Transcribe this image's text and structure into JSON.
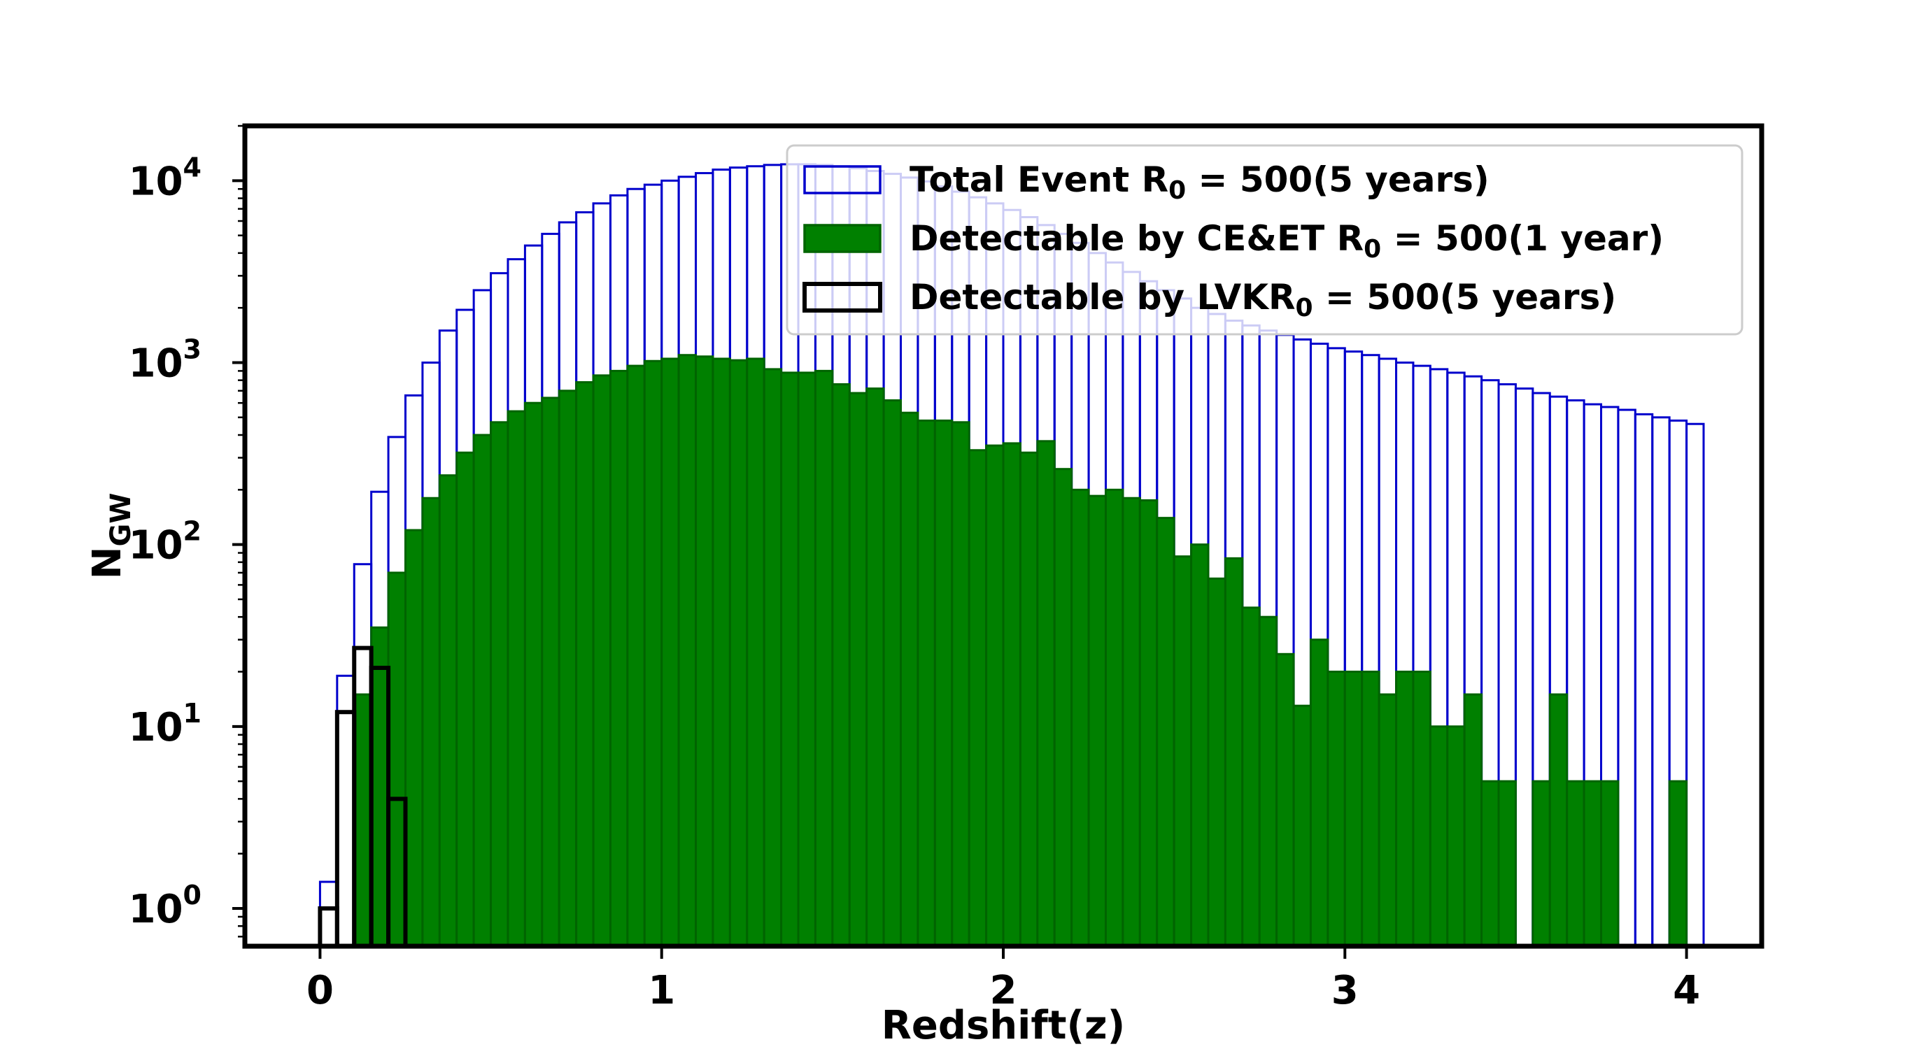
{
  "chart_data": {
    "type": "bar",
    "subtype": "step histogram",
    "yscale": "log",
    "xlabel": "Redshift(z)",
    "ylabel_main": "N",
    "ylabel_sub": "GW",
    "xlim": [
      -0.22,
      4.22
    ],
    "ylim": [
      0.62,
      20000
    ],
    "bin_width": 0.05,
    "bin_start": 0.0,
    "x_ticks": [
      {
        "value": 0,
        "label": "0"
      },
      {
        "value": 1,
        "label": "1"
      },
      {
        "value": 2,
        "label": "2"
      },
      {
        "value": 3,
        "label": "3"
      },
      {
        "value": 4,
        "label": "4"
      }
    ],
    "y_ticks": [
      {
        "value": 1,
        "base": "10",
        "exp": "0"
      },
      {
        "value": 10,
        "base": "10",
        "exp": "1"
      },
      {
        "value": 100,
        "base": "10",
        "exp": "2"
      },
      {
        "value": 1000,
        "base": "10",
        "exp": "3"
      },
      {
        "value": 10000,
        "base": "10",
        "exp": "4"
      }
    ],
    "series": [
      {
        "name": "total",
        "color": "#0000cc",
        "filled": false,
        "values": [
          1.4,
          19,
          78,
          195,
          390,
          660,
          1000,
          1500,
          1950,
          2500,
          3100,
          3700,
          4400,
          5100,
          5900,
          6700,
          7500,
          8300,
          9000,
          9500,
          10000,
          10500,
          11000,
          11500,
          11800,
          12000,
          12200,
          12300,
          12300,
          12200,
          12000,
          11700,
          11300,
          10900,
          10400,
          9900,
          9300,
          8700,
          8100,
          7500,
          6900,
          6300,
          5700,
          5100,
          4550,
          4000,
          3550,
          3150,
          2800,
          2500,
          2250,
          2000,
          1850,
          1700,
          1600,
          1500,
          1420,
          1340,
          1270,
          1200,
          1150,
          1100,
          1050,
          1000,
          960,
          920,
          880,
          840,
          800,
          760,
          720,
          680,
          650,
          620,
          590,
          570,
          550,
          520,
          500,
          480,
          460
        ]
      },
      {
        "name": "ce_et",
        "color": "#008000",
        "edge": "#006400",
        "filled": true,
        "values": [
          0,
          0,
          15,
          35,
          70,
          120,
          180,
          240,
          320,
          400,
          470,
          540,
          600,
          640,
          700,
          780,
          850,
          900,
          960,
          1020,
          1050,
          1100,
          1080,
          1050,
          1030,
          1050,
          920,
          880,
          880,
          900,
          760,
          680,
          720,
          620,
          530,
          480,
          480,
          470,
          330,
          350,
          360,
          320,
          370,
          260,
          200,
          185,
          200,
          180,
          175,
          140,
          86,
          100,
          65,
          84,
          45,
          40,
          25,
          13,
          30,
          20,
          20,
          20,
          15,
          20,
          20,
          10,
          10,
          15,
          5,
          5,
          0,
          5,
          15,
          5,
          5,
          5,
          0,
          0,
          0,
          5,
          0
        ]
      },
      {
        "name": "lvk",
        "color": "#000000",
        "filled": false,
        "values": [
          1,
          12,
          27,
          21,
          4
        ]
      }
    ],
    "legend": {
      "position": "top-right",
      "entries": [
        {
          "series": "total",
          "text": "Total Event R",
          "sub": "0",
          "rest": " = 500(5 years)"
        },
        {
          "series": "ce_et",
          "text": "Detectable by CE&ET R",
          "sub": "0",
          "rest": " = 500(1 year)"
        },
        {
          "series": "lvk",
          "text": "Detectable by LVKR",
          "sub": "0",
          "rest": " = 500(5 years)"
        }
      ]
    }
  }
}
